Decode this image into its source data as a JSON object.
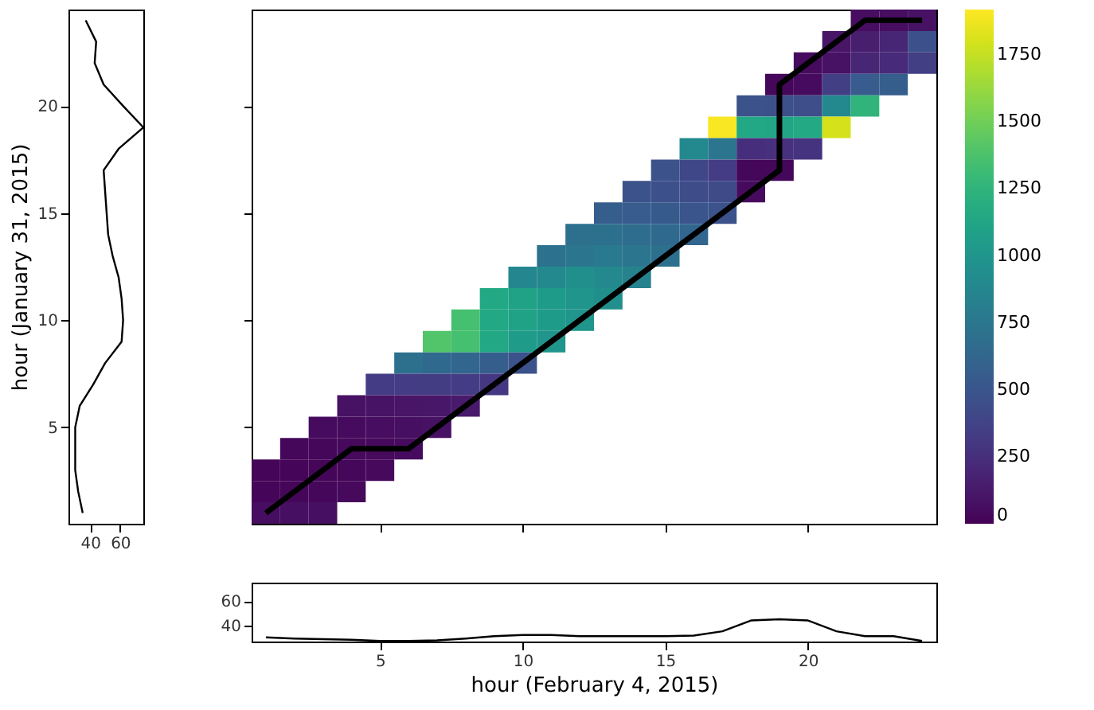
{
  "chart_data": [
    {
      "type": "line",
      "ylabel": "hour (January 31, 2015)",
      "color": "#000000",
      "x": [
        35,
        32,
        30,
        30,
        30,
        33,
        42,
        50,
        61,
        62,
        61,
        59,
        55,
        52,
        51,
        50,
        49,
        59,
        75.5,
        62,
        49,
        43,
        44,
        37
      ],
      "values": [
        1,
        2,
        3,
        4,
        5,
        6,
        7,
        8,
        9,
        10,
        11,
        12,
        13,
        14,
        15,
        16,
        17,
        18,
        19,
        20,
        21,
        22,
        23,
        24
      ],
      "xlim": [
        25.5,
        75.5
      ],
      "xticks": [
        40,
        60
      ],
      "ylim": [
        0.5,
        24.5
      ],
      "yticks": [
        5,
        10,
        15,
        20
      ]
    },
    {
      "type": "heatmap",
      "tick_labels": false,
      "xlim": [
        0.5,
        24.5
      ],
      "xticks": [
        5,
        10,
        15,
        20
      ],
      "ylim": [
        0.5,
        24.5
      ],
      "yticks": [
        5,
        10,
        15,
        20
      ],
      "clim": [
        0,
        1920
      ],
      "cticks": [
        0,
        250,
        500,
        750,
        1000,
        1250,
        1500,
        1750
      ],
      "x": [
        1,
        2,
        3,
        4,
        5,
        6,
        7,
        8,
        9,
        10,
        11,
        12,
        13,
        14,
        15,
        16,
        17,
        18,
        19,
        20,
        21,
        22,
        23,
        24
      ],
      "y": [
        24,
        23,
        22,
        21,
        20,
        19,
        18,
        17,
        16,
        15,
        14,
        13,
        12,
        11,
        10,
        9,
        8,
        7,
        6,
        5,
        4,
        3,
        2,
        1
      ],
      "cells": [
        [
          null,
          null,
          null,
          null,
          null,
          null,
          null,
          null,
          null,
          null,
          null,
          null,
          null,
          null,
          null,
          null,
          null,
          null,
          null,
          null,
          null,
          60,
          60,
          80
        ],
        [
          null,
          null,
          null,
          null,
          null,
          null,
          null,
          null,
          null,
          null,
          null,
          null,
          null,
          null,
          null,
          null,
          null,
          null,
          null,
          null,
          100,
          150,
          200,
          470
        ],
        [
          null,
          null,
          null,
          null,
          null,
          null,
          null,
          null,
          null,
          null,
          null,
          null,
          null,
          null,
          null,
          null,
          null,
          null,
          null,
          50,
          80,
          200,
          230,
          350
        ],
        [
          null,
          null,
          null,
          null,
          null,
          null,
          null,
          null,
          null,
          null,
          null,
          null,
          null,
          null,
          null,
          null,
          null,
          null,
          30,
          50,
          350,
          550,
          560,
          null
        ],
        [
          null,
          null,
          null,
          null,
          null,
          null,
          null,
          null,
          null,
          null,
          null,
          null,
          null,
          null,
          null,
          null,
          null,
          480,
          460,
          450,
          900,
          1250,
          null,
          null
        ],
        [
          null,
          null,
          null,
          null,
          null,
          null,
          null,
          null,
          null,
          null,
          null,
          null,
          null,
          null,
          null,
          null,
          1910,
          1150,
          1130,
          1160,
          1800,
          null,
          null,
          null
        ],
        [
          null,
          null,
          null,
          null,
          null,
          null,
          null,
          null,
          null,
          null,
          null,
          null,
          null,
          null,
          null,
          900,
          750,
          250,
          260,
          280,
          null,
          null,
          null,
          null
        ],
        [
          null,
          null,
          null,
          null,
          null,
          null,
          null,
          null,
          null,
          null,
          null,
          null,
          null,
          null,
          480,
          400,
          330,
          30,
          30,
          null,
          null,
          null,
          null,
          null
        ],
        [
          null,
          null,
          null,
          null,
          null,
          null,
          null,
          null,
          null,
          null,
          null,
          null,
          null,
          480,
          470,
          440,
          420,
          50,
          null,
          null,
          null,
          null,
          null,
          null
        ],
        [
          null,
          null,
          null,
          null,
          null,
          null,
          null,
          null,
          null,
          null,
          null,
          null,
          560,
          550,
          540,
          500,
          480,
          null,
          null,
          null,
          null,
          null,
          null,
          null
        ],
        [
          null,
          null,
          null,
          null,
          null,
          null,
          null,
          null,
          null,
          null,
          null,
          700,
          700,
          680,
          650,
          620,
          null,
          null,
          null,
          null,
          null,
          null,
          null,
          null
        ],
        [
          null,
          null,
          null,
          null,
          null,
          null,
          null,
          null,
          null,
          null,
          720,
          750,
          780,
          750,
          700,
          null,
          null,
          null,
          null,
          null,
          null,
          null,
          null,
          null
        ],
        [
          null,
          null,
          null,
          null,
          null,
          null,
          null,
          null,
          null,
          880,
          900,
          950,
          900,
          850,
          null,
          null,
          null,
          null,
          null,
          null,
          null,
          null,
          null,
          null
        ],
        [
          null,
          null,
          null,
          null,
          null,
          null,
          null,
          null,
          1150,
          1100,
          1050,
          1000,
          950,
          null,
          null,
          null,
          null,
          null,
          null,
          null,
          null,
          null,
          null,
          null
        ],
        [
          null,
          null,
          null,
          null,
          null,
          null,
          null,
          1350,
          1150,
          1100,
          1050,
          1000,
          null,
          null,
          null,
          null,
          null,
          null,
          null,
          null,
          null,
          null,
          null,
          null
        ],
        [
          null,
          null,
          null,
          null,
          null,
          null,
          1400,
          1350,
          1150,
          1050,
          1000,
          null,
          null,
          null,
          null,
          null,
          null,
          null,
          null,
          null,
          null,
          null,
          null,
          null
        ],
        [
          null,
          null,
          null,
          null,
          null,
          700,
          650,
          620,
          560,
          480,
          null,
          null,
          null,
          null,
          null,
          null,
          null,
          null,
          null,
          null,
          null,
          null,
          null,
          null
        ],
        [
          null,
          null,
          null,
          null,
          330,
          330,
          340,
          330,
          300,
          null,
          null,
          null,
          null,
          null,
          null,
          null,
          null,
          null,
          null,
          null,
          null,
          null,
          null,
          null
        ],
        [
          null,
          null,
          null,
          80,
          90,
          100,
          110,
          130,
          null,
          null,
          null,
          null,
          null,
          null,
          null,
          null,
          null,
          null,
          null,
          null,
          null,
          null,
          null,
          null
        ],
        [
          null,
          null,
          50,
          50,
          60,
          70,
          80,
          null,
          null,
          null,
          null,
          null,
          null,
          null,
          null,
          null,
          null,
          null,
          null,
          null,
          null,
          null,
          null,
          null
        ],
        [
          null,
          30,
          30,
          40,
          40,
          50,
          null,
          null,
          null,
          null,
          null,
          null,
          null,
          null,
          null,
          null,
          null,
          null,
          null,
          null,
          null,
          null,
          null,
          null
        ],
        [
          20,
          20,
          25,
          30,
          40,
          null,
          null,
          null,
          null,
          null,
          null,
          null,
          null,
          null,
          null,
          null,
          null,
          null,
          null,
          null,
          null,
          null,
          null,
          null
        ],
        [
          20,
          25,
          30,
          40,
          null,
          null,
          null,
          null,
          null,
          null,
          null,
          null,
          null,
          null,
          null,
          null,
          null,
          null,
          null,
          null,
          null,
          null,
          null,
          null
        ],
        [
          60,
          70,
          70,
          null,
          null,
          null,
          null,
          null,
          null,
          null,
          null,
          null,
          null,
          null,
          null,
          null,
          null,
          null,
          null,
          null,
          null,
          null,
          null,
          null
        ]
      ],
      "series": [
        {
          "type": "line",
          "color": "#000000",
          "x": [
            1,
            4,
            6,
            19,
            19,
            22,
            24
          ],
          "values": [
            1,
            4,
            4,
            17,
            21,
            24,
            24
          ]
        }
      ]
    },
    {
      "type": "line",
      "xlabel": "hour (February 4, 2015)",
      "color": "#000000",
      "x": [
        1,
        2,
        3,
        4,
        5,
        6,
        7,
        8,
        9,
        10,
        11,
        12,
        13,
        14,
        15,
        16,
        17,
        18,
        19,
        20,
        21,
        22,
        23,
        24
      ],
      "values": [
        30,
        29,
        28.5,
        28,
        27,
        27,
        27.5,
        29,
        31,
        32,
        32,
        31,
        31,
        31,
        31,
        31.5,
        35,
        44,
        45,
        44,
        35,
        31,
        31,
        27
      ],
      "xlim": [
        0.5,
        24.5
      ],
      "xticks": [
        5,
        10,
        15,
        20
      ],
      "ylim": [
        26.5,
        75.5
      ],
      "yticks": [
        40,
        60
      ]
    }
  ]
}
